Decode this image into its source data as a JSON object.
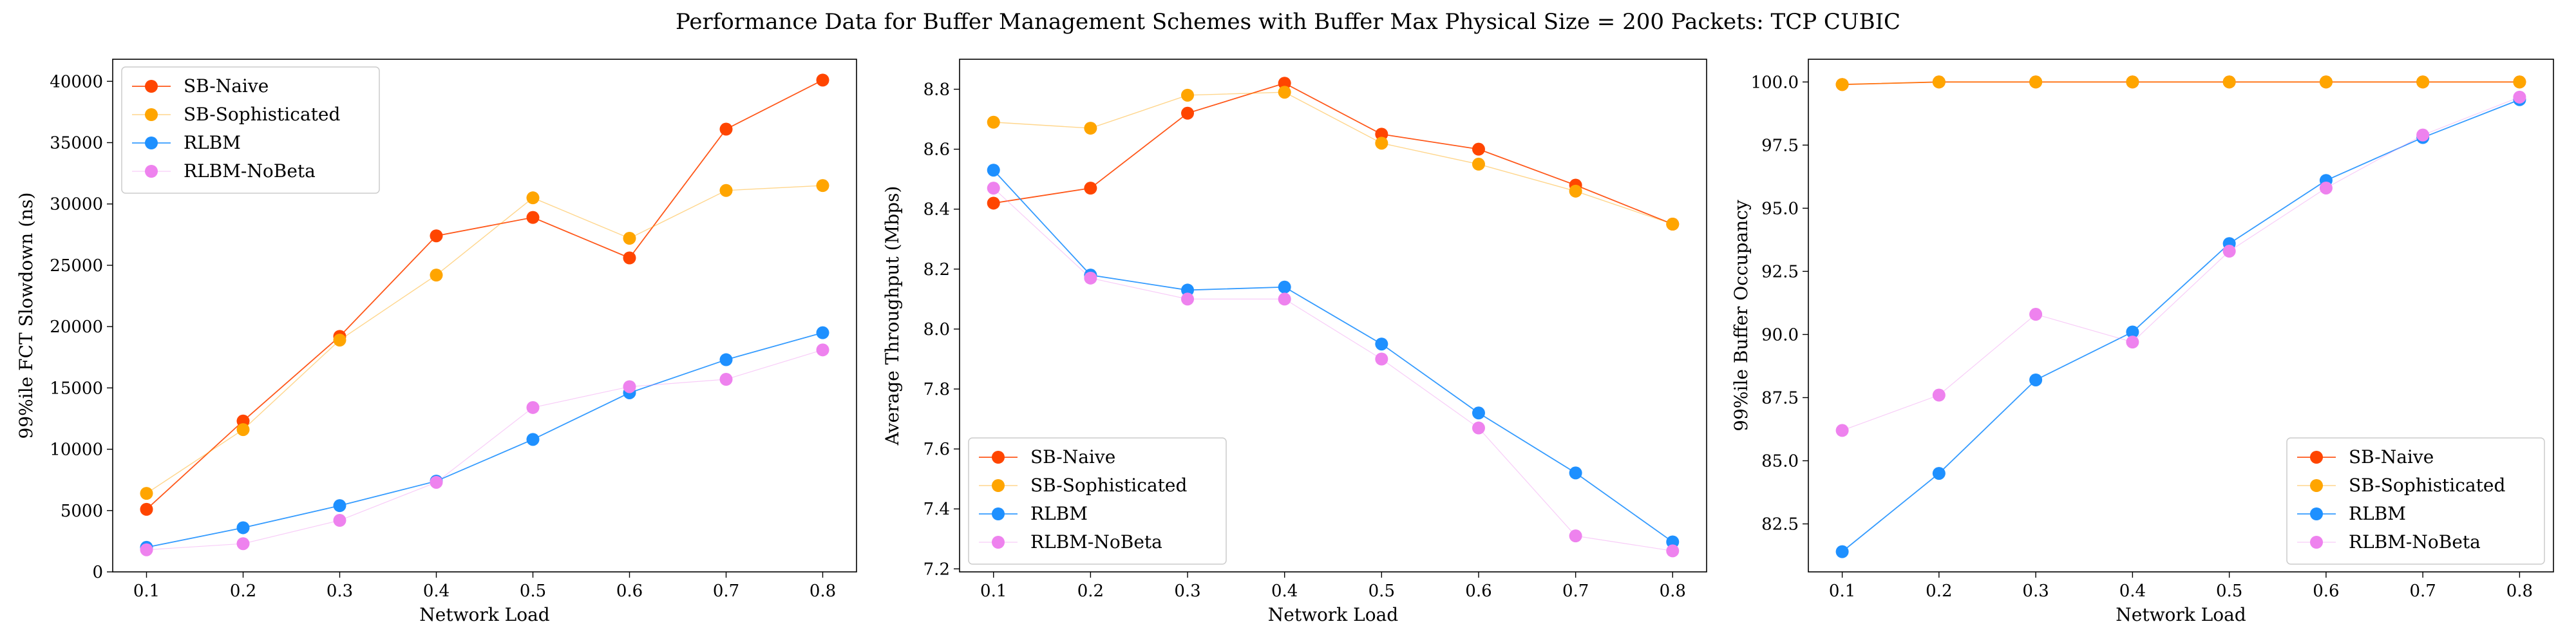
{
  "figure": {
    "title": "Performance Data for Buffer Management Schemes with Buffer Max Physical Size = 200 Packets: TCP CUBIC"
  },
  "chart_data": [
    {
      "type": "line",
      "title": "",
      "xlabel": "Network Load",
      "ylabel": "99%ile FCT Slowdown (ns)",
      "x": [
        0.1,
        0.2,
        0.3,
        0.4,
        0.5,
        0.6,
        0.7,
        0.8
      ],
      "xticks": [
        "0.1",
        "0.2",
        "0.3",
        "0.4",
        "0.5",
        "0.6",
        "0.7",
        "0.8"
      ],
      "xlim": [
        0.065,
        0.835
      ],
      "ylim": [
        0,
        41800
      ],
      "yticks": [
        0,
        5000,
        10000,
        15000,
        20000,
        25000,
        30000,
        35000,
        40000
      ],
      "ytick_labels": [
        "0",
        "5000",
        "10000",
        "15000",
        "20000",
        "25000",
        "30000",
        "35000",
        "40000"
      ],
      "grid": false,
      "legend_position": "top-left",
      "series": [
        {
          "name": "SB-Naive",
          "color": "#ff4500",
          "values": [
            5100,
            12300,
            19200,
            27400,
            28900,
            25600,
            36100,
            40100
          ]
        },
        {
          "name": "SB-Sophisticated",
          "color": "#ffa500",
          "values": [
            6400,
            11600,
            18900,
            24200,
            30500,
            27200,
            31100,
            31500
          ]
        },
        {
          "name": "RLBM",
          "color": "#1e90ff",
          "values": [
            2000,
            3600,
            5400,
            7400,
            10800,
            14600,
            17300,
            19500
          ]
        },
        {
          "name": "RLBM-NoBeta",
          "color": "#ee82ee",
          "values": [
            1800,
            2300,
            4200,
            7300,
            13400,
            15100,
            15700,
            18100
          ]
        }
      ]
    },
    {
      "type": "line",
      "title": "",
      "xlabel": "Network Load",
      "ylabel": "Average Throughput (Mbps)",
      "x": [
        0.1,
        0.2,
        0.3,
        0.4,
        0.5,
        0.6,
        0.7,
        0.8
      ],
      "xticks": [
        "0.1",
        "0.2",
        "0.3",
        "0.4",
        "0.5",
        "0.6",
        "0.7",
        "0.8"
      ],
      "xlim": [
        0.065,
        0.835
      ],
      "ylim": [
        7.19,
        8.9
      ],
      "yticks": [
        7.2,
        7.4,
        7.6,
        7.8,
        8.0,
        8.2,
        8.4,
        8.6,
        8.8
      ],
      "ytick_labels": [
        "7.2",
        "7.4",
        "7.6",
        "7.8",
        "8.0",
        "8.2",
        "8.4",
        "8.6",
        "8.8"
      ],
      "grid": false,
      "legend_position": "bottom-left",
      "series": [
        {
          "name": "SB-Naive",
          "color": "#ff4500",
          "values": [
            8.42,
            8.47,
            8.72,
            8.82,
            8.65,
            8.6,
            8.48,
            8.35
          ]
        },
        {
          "name": "SB-Sophisticated",
          "color": "#ffa500",
          "values": [
            8.69,
            8.67,
            8.78,
            8.79,
            8.62,
            8.55,
            8.46,
            8.35
          ]
        },
        {
          "name": "RLBM",
          "color": "#1e90ff",
          "values": [
            8.53,
            8.18,
            8.13,
            8.14,
            7.95,
            7.72,
            7.52,
            7.29
          ]
        },
        {
          "name": "RLBM-NoBeta",
          "color": "#ee82ee",
          "values": [
            8.47,
            8.17,
            8.1,
            8.1,
            7.9,
            7.67,
            7.31,
            7.26
          ]
        }
      ]
    },
    {
      "type": "line",
      "title": "",
      "xlabel": "Network Load",
      "ylabel": "99%ile Buffer Occupancy",
      "x": [
        0.1,
        0.2,
        0.3,
        0.4,
        0.5,
        0.6,
        0.7,
        0.8
      ],
      "xticks": [
        "0.1",
        "0.2",
        "0.3",
        "0.4",
        "0.5",
        "0.6",
        "0.7",
        "0.8"
      ],
      "xlim": [
        0.065,
        0.835
      ],
      "ylim": [
        80.6,
        100.9
      ],
      "yticks": [
        82.5,
        85.0,
        87.5,
        90.0,
        92.5,
        95.0,
        97.5,
        100.0
      ],
      "ytick_labels": [
        "82.5",
        "85.0",
        "87.5",
        "90.0",
        "92.5",
        "95.0",
        "97.5",
        "100.0"
      ],
      "grid": false,
      "legend_position": "bottom-right",
      "series": [
        {
          "name": "SB-Naive",
          "color": "#ff4500",
          "values": [
            99.9,
            100.0,
            100.0,
            100.0,
            100.0,
            100.0,
            100.0,
            100.0
          ]
        },
        {
          "name": "SB-Sophisticated",
          "color": "#ffa500",
          "values": [
            99.9,
            100.0,
            100.0,
            100.0,
            100.0,
            100.0,
            100.0,
            100.0
          ]
        },
        {
          "name": "RLBM",
          "color": "#1e90ff",
          "values": [
            81.4,
            84.5,
            88.2,
            90.1,
            93.6,
            96.1,
            97.8,
            99.3
          ]
        },
        {
          "name": "RLBM-NoBeta",
          "color": "#ee82ee",
          "values": [
            86.2,
            87.6,
            90.8,
            89.7,
            93.3,
            95.8,
            97.9,
            99.4
          ]
        }
      ]
    }
  ]
}
